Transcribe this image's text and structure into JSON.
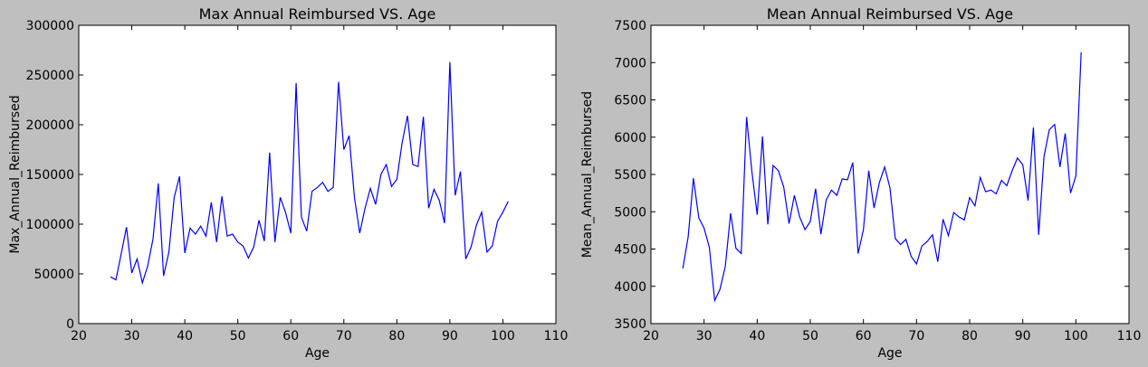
{
  "colors": {
    "background": "#bfbfbf",
    "plot_area": "#ffffff",
    "series": "#0000ff"
  },
  "chart_data": [
    {
      "type": "line",
      "title": "Max Annual Reimbursed VS. Age",
      "xlabel": "Age",
      "ylabel": "Max_Annual_Reimbursed",
      "xlim": [
        20,
        110
      ],
      "ylim": [
        0,
        300000
      ],
      "xticks": [
        20,
        30,
        40,
        50,
        60,
        70,
        80,
        90,
        100,
        110
      ],
      "yticks": [
        0,
        50000,
        100000,
        150000,
        200000,
        250000,
        300000
      ],
      "grid": false,
      "series": [
        {
          "x": [
            26,
            27,
            28,
            29,
            30,
            31,
            32,
            33,
            34,
            35,
            36,
            37,
            38,
            39,
            40,
            41,
            42,
            43,
            44,
            45,
            46,
            47,
            48,
            49,
            50,
            51,
            52,
            53,
            54,
            55,
            56,
            57,
            58,
            59,
            60,
            61,
            62,
            63,
            64,
            65,
            66,
            67,
            68,
            69,
            70,
            71,
            72,
            73,
            74,
            75,
            76,
            77,
            78,
            79,
            80,
            81,
            82,
            83,
            84,
            85,
            86,
            87,
            88,
            89,
            90,
            91,
            92,
            93,
            94,
            95,
            96,
            97,
            98,
            99,
            100,
            101
          ],
          "y": [
            47000,
            44000,
            70000,
            97000,
            51000,
            65000,
            41000,
            58000,
            85000,
            141000,
            48000,
            72000,
            127000,
            148000,
            71000,
            96000,
            90000,
            98000,
            88000,
            122000,
            82000,
            128000,
            88000,
            90000,
            82000,
            78000,
            66000,
            77000,
            104000,
            83000,
            172000,
            82000,
            127000,
            112000,
            91000,
            242000,
            107000,
            93000,
            133000,
            137000,
            142000,
            133000,
            137000,
            243000,
            175000,
            189000,
            127000,
            91000,
            116000,
            136000,
            120000,
            150000,
            160000,
            138000,
            145000,
            182000,
            209000,
            160000,
            158000,
            208000,
            116000,
            135000,
            124000,
            101000,
            263000,
            129000,
            153000,
            65000,
            77000,
            99000,
            112000,
            72000,
            78000,
            103000,
            112000,
            123000
          ]
        }
      ]
    },
    {
      "type": "line",
      "title": "Mean Annual Reimbursed VS. Age",
      "xlabel": "Age",
      "ylabel": "Mean_Annual_Reimbursed",
      "xlim": [
        20,
        110
      ],
      "ylim": [
        3500,
        7500
      ],
      "xticks": [
        20,
        30,
        40,
        50,
        60,
        70,
        80,
        90,
        100,
        110
      ],
      "yticks": [
        3500,
        4000,
        4500,
        5000,
        5500,
        6000,
        6500,
        7000,
        7500
      ],
      "grid": false,
      "series": [
        {
          "x": [
            26,
            27,
            28,
            29,
            30,
            31,
            32,
            33,
            34,
            35,
            36,
            37,
            38,
            39,
            40,
            41,
            42,
            43,
            44,
            45,
            46,
            47,
            48,
            49,
            50,
            51,
            52,
            53,
            54,
            55,
            56,
            57,
            58,
            59,
            60,
            61,
            62,
            63,
            64,
            65,
            66,
            67,
            68,
            69,
            70,
            71,
            72,
            73,
            74,
            75,
            76,
            77,
            78,
            79,
            80,
            81,
            82,
            83,
            84,
            85,
            86,
            87,
            88,
            89,
            90,
            91,
            92,
            93,
            94,
            95,
            96,
            97,
            98,
            99,
            100,
            101
          ],
          "y": [
            4240,
            4660,
            5450,
            4920,
            4780,
            4520,
            3810,
            3960,
            4270,
            4980,
            4510,
            4440,
            6270,
            5540,
            4960,
            6010,
            4830,
            5620,
            5550,
            5330,
            4840,
            5220,
            4930,
            4760,
            4870,
            5310,
            4700,
            5160,
            5290,
            5220,
            5440,
            5430,
            5660,
            4440,
            4760,
            5550,
            5050,
            5390,
            5600,
            5320,
            4640,
            4560,
            4630,
            4400,
            4300,
            4540,
            4600,
            4690,
            4330,
            4900,
            4680,
            4990,
            4930,
            4890,
            5190,
            5080,
            5460,
            5270,
            5290,
            5240,
            5420,
            5350,
            5550,
            5720,
            5630,
            5150,
            6130,
            4690,
            5740,
            6100,
            6170,
            5600,
            6050,
            5250,
            5480,
            7140
          ]
        }
      ]
    }
  ]
}
